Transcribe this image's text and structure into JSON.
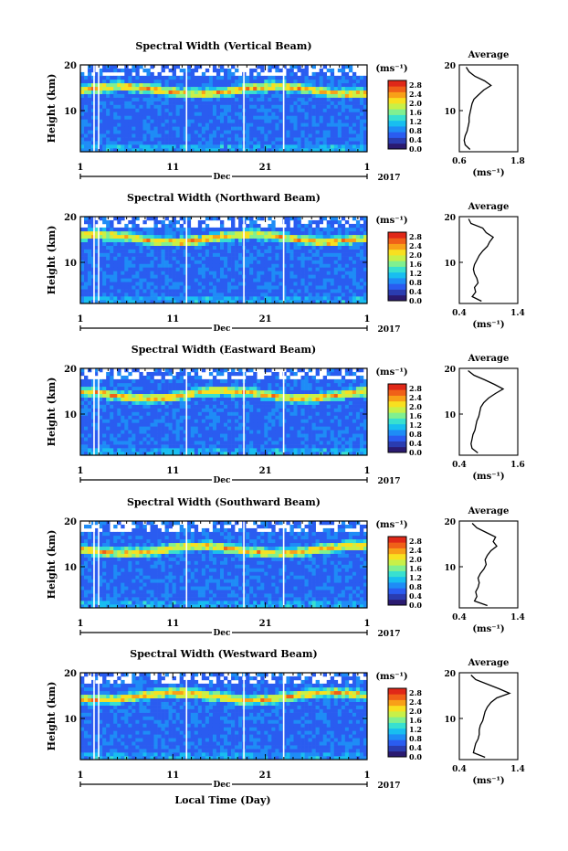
{
  "figure": {
    "xlabel_bottom": "Local Time (Day)",
    "month": "Dec",
    "year": "2017",
    "colorbar_unit": "(ms⁻¹)",
    "colorbar_ticks": [
      "0.0",
      "0.4",
      "0.8",
      "1.2",
      "1.6",
      "2.0",
      "2.4",
      "2.8"
    ],
    "colorbar_range": [
      0.0,
      3.0
    ],
    "colormap": [
      "#2a1a70",
      "#2a3cb0",
      "#2a5cf0",
      "#1e8cf6",
      "#18bef0",
      "#38e0d0",
      "#80f090",
      "#c8f048",
      "#f8e020",
      "#f8a018",
      "#f06018",
      "#e02818"
    ],
    "average_title": "Average",
    "average_xlabel": "(ms⁻¹)"
  },
  "chart_data": [
    {
      "type": "heatmap",
      "title": "Spectral Width (Vertical Beam)",
      "ylabel": "Height (km)",
      "x_ticks": [
        "1",
        "11",
        "21",
        "1"
      ],
      "y_ticks": [
        "10",
        "20"
      ],
      "xlim": [
        1,
        32
      ],
      "ylim": [
        1,
        20
      ],
      "avg_ticks": [
        "0.6",
        "1.8"
      ],
      "avg_xlim": [
        0.6,
        1.8
      ],
      "avg_profile": {
        "height": [
          1.5,
          2.5,
          3.5,
          4.5,
          5.5,
          6.5,
          7.5,
          8.5,
          9.5,
          10.5,
          11.5,
          12.5,
          13.5,
          14.5,
          15.5,
          16.5,
          17.5,
          18.5,
          19.5
        ],
        "value": [
          0.82,
          0.72,
          0.7,
          0.72,
          0.76,
          0.78,
          0.8,
          0.8,
          0.82,
          0.84,
          0.86,
          0.9,
          1.0,
          1.1,
          1.25,
          1.12,
          0.92,
          0.8,
          0.74
        ]
      }
    },
    {
      "type": "heatmap",
      "title": "Spectral Width (Northward Beam)",
      "ylabel": "Height (km)",
      "x_ticks": [
        "1",
        "11",
        "21",
        "1"
      ],
      "y_ticks": [
        "10",
        "20"
      ],
      "xlim": [
        1,
        32
      ],
      "ylim": [
        1,
        20
      ],
      "avg_ticks": [
        "0.4",
        "1.4"
      ],
      "avg_xlim": [
        0.4,
        1.4
      ],
      "avg_profile": {
        "height": [
          1.5,
          2.5,
          3.5,
          4.5,
          5.5,
          6.5,
          7.5,
          8.5,
          9.5,
          10.5,
          11.5,
          12.5,
          13.5,
          14.5,
          15.5,
          16.5,
          17.5,
          18.5,
          19.5
        ],
        "value": [
          0.78,
          0.62,
          0.68,
          0.66,
          0.72,
          0.7,
          0.66,
          0.64,
          0.66,
          0.7,
          0.74,
          0.8,
          0.88,
          0.92,
          0.98,
          0.86,
          0.8,
          0.6,
          0.56
        ]
      }
    },
    {
      "type": "heatmap",
      "title": "Spectral Width (Eastward Beam)",
      "ylabel": "Height (km)",
      "x_ticks": [
        "1",
        "11",
        "21",
        "1"
      ],
      "y_ticks": [
        "10",
        "20"
      ],
      "xlim": [
        1,
        32
      ],
      "ylim": [
        1,
        20
      ],
      "avg_ticks": [
        "0.4",
        "1.6"
      ],
      "avg_xlim": [
        0.4,
        1.6
      ],
      "avg_profile": {
        "height": [
          1.5,
          2.5,
          3.5,
          4.5,
          5.5,
          6.5,
          7.5,
          8.5,
          9.5,
          10.5,
          11.5,
          12.5,
          13.5,
          14.5,
          15.5,
          16.5,
          17.5,
          18.5,
          19.5
        ],
        "value": [
          0.78,
          0.66,
          0.64,
          0.66,
          0.68,
          0.72,
          0.74,
          0.76,
          0.8,
          0.82,
          0.84,
          0.9,
          1.0,
          1.14,
          1.3,
          1.12,
          0.92,
          0.7,
          0.58
        ]
      }
    },
    {
      "type": "heatmap",
      "title": "Spectral Width (Southward Beam)",
      "ylabel": "Height (km)",
      "x_ticks": [
        "1",
        "11",
        "21",
        "1"
      ],
      "y_ticks": [
        "10",
        "20"
      ],
      "xlim": [
        1,
        32
      ],
      "ylim": [
        1,
        20
      ],
      "avg_ticks": [
        "0.4",
        "1.4"
      ],
      "avg_xlim": [
        0.4,
        1.4
      ],
      "avg_profile": {
        "height": [
          1.5,
          2.5,
          3.5,
          4.5,
          5.5,
          6.5,
          7.5,
          8.5,
          9.5,
          10.5,
          11.5,
          12.5,
          13.5,
          14.5,
          15.5,
          16.5,
          17.5,
          18.5,
          19.5
        ],
        "value": [
          0.88,
          0.66,
          0.7,
          0.68,
          0.72,
          0.74,
          0.72,
          0.76,
          0.82,
          0.86,
          0.84,
          0.88,
          0.94,
          1.04,
          0.98,
          1.02,
          0.86,
          0.7,
          0.62
        ]
      }
    },
    {
      "type": "heatmap",
      "title": "Spectral Width (Westward Beam)",
      "ylabel": "Height (km)",
      "x_ticks": [
        "1",
        "11",
        "21",
        "1"
      ],
      "y_ticks": [
        "10",
        "20"
      ],
      "xlim": [
        1,
        32
      ],
      "ylim": [
        1,
        20
      ],
      "avg_ticks": [
        "0.4",
        "1.4"
      ],
      "avg_xlim": [
        0.4,
        1.4
      ],
      "avg_profile": {
        "height": [
          1.5,
          2.5,
          3.5,
          4.5,
          5.5,
          6.5,
          7.5,
          8.5,
          9.5,
          10.5,
          11.5,
          12.5,
          13.5,
          14.5,
          15.5,
          16.5,
          17.5,
          18.5,
          19.5
        ],
        "value": [
          0.84,
          0.64,
          0.66,
          0.68,
          0.72,
          0.74,
          0.74,
          0.76,
          0.8,
          0.82,
          0.84,
          0.88,
          0.94,
          1.04,
          1.26,
          1.08,
          0.88,
          0.68,
          0.6
        ]
      }
    }
  ]
}
